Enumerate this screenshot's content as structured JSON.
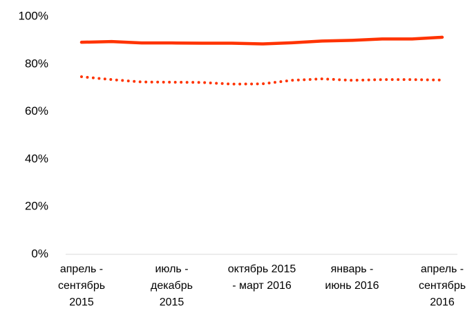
{
  "chart_data": {
    "type": "line",
    "categories": [
      "апрель - сентябрь 2015",
      null,
      null,
      "июль - декабрь 2015",
      null,
      null,
      "октябрь 2015 - март 2016",
      null,
      null,
      "январь - июнь 2016",
      null,
      null,
      "апрель - сентябрь 2016"
    ],
    "series": [
      {
        "color": "#ff3300",
        "style": "solid",
        "values": [
          89.2,
          89.5,
          88.9,
          88.9,
          88.8,
          88.8,
          88.5,
          89.0,
          89.7,
          90.0,
          90.6,
          90.6,
          91.3
        ]
      },
      {
        "color": "#ff3300",
        "style": "dotted",
        "values": [
          74.7,
          73.5,
          72.5,
          72.4,
          72.3,
          71.6,
          71.7,
          73.2,
          73.8,
          73.2,
          73.5,
          73.5,
          73.3
        ]
      }
    ],
    "ylim": [
      0,
      100
    ],
    "yticks": [
      {
        "value": 0,
        "label": "0%"
      },
      {
        "value": 20,
        "label": "20%"
      },
      {
        "value": 40,
        "label": "40%"
      },
      {
        "value": 60,
        "label": "60%"
      },
      {
        "value": 80,
        "label": "80%"
      },
      {
        "value": 100,
        "label": "100%"
      }
    ],
    "grid": false
  }
}
